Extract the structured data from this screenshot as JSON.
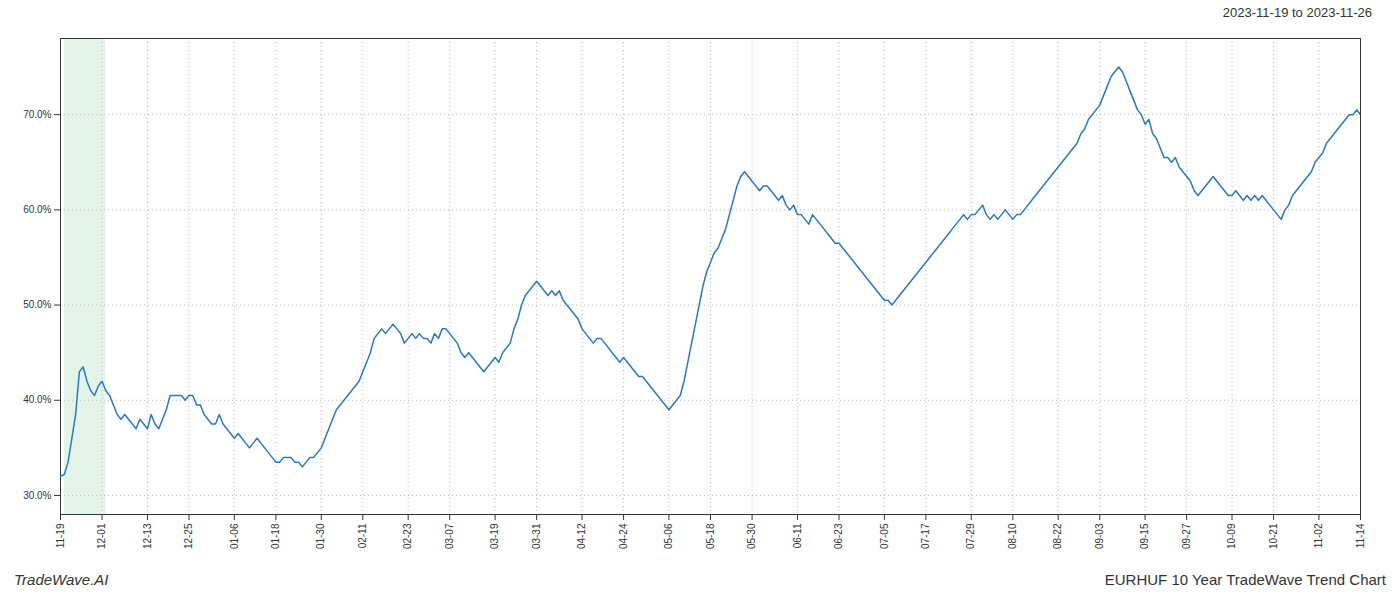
{
  "chart_data": {
    "type": "line",
    "title": "EURHUF 10 Year TradeWave Trend Chart",
    "subtitle": "2023-11-19 to 2023-11-26",
    "annotations": [
      {
        "text": "TradeWave.AI"
      }
    ],
    "categories": [
      "11-19",
      null,
      null,
      null,
      null,
      null,
      null,
      null,
      null,
      null,
      null,
      "12-01",
      null,
      null,
      null,
      null,
      null,
      null,
      null,
      null,
      null,
      null,
      null,
      "12-13",
      null,
      null,
      null,
      null,
      null,
      null,
      null,
      null,
      null,
      null,
      "12-25",
      null,
      null,
      null,
      null,
      null,
      null,
      null,
      null,
      null,
      null,
      null,
      "01-06",
      null,
      null,
      null,
      null,
      null,
      null,
      null,
      null,
      null,
      null,
      "01-18",
      null,
      null,
      null,
      null,
      null,
      null,
      null,
      null,
      null,
      null,
      null,
      "01-30",
      null,
      null,
      null,
      null,
      null,
      null,
      null,
      null,
      null,
      null,
      "02-11",
      null,
      null,
      null,
      null,
      null,
      null,
      null,
      null,
      null,
      null,
      null,
      "02-23",
      null,
      null,
      null,
      null,
      null,
      null,
      null,
      null,
      null,
      null,
      "03-07",
      null,
      null,
      null,
      null,
      null,
      null,
      null,
      null,
      null,
      null,
      null,
      "03-19",
      null,
      null,
      null,
      null,
      null,
      null,
      null,
      null,
      null,
      null,
      "03-31",
      null,
      null,
      null,
      null,
      null,
      null,
      null,
      null,
      null,
      null,
      null,
      "04-12",
      null,
      null,
      null,
      null,
      null,
      null,
      null,
      null,
      null,
      null,
      "04-24",
      null,
      null,
      null,
      null,
      null,
      null,
      null,
      null,
      null,
      null,
      null,
      "05-06",
      null,
      null,
      null,
      null,
      null,
      null,
      null,
      null,
      null,
      null,
      "05-18",
      null,
      null,
      null,
      null,
      null,
      null,
      null,
      null,
      null,
      null,
      "05-30",
      null,
      null,
      null,
      null,
      null,
      null,
      null,
      null,
      null,
      null,
      null,
      "06-11",
      null,
      null,
      null,
      null,
      null,
      null,
      null,
      null,
      null,
      null,
      "06-23",
      null,
      null,
      null,
      null,
      null,
      null,
      null,
      null,
      null,
      null,
      null,
      "07-05",
      null,
      null,
      null,
      null,
      null,
      null,
      null,
      null,
      null,
      null,
      "07-17",
      null,
      null,
      null,
      null,
      null,
      null,
      null,
      null,
      null,
      null,
      null,
      "07-29",
      null,
      null,
      null,
      null,
      null,
      null,
      null,
      null,
      null,
      null,
      "08-10",
      null,
      null,
      null,
      null,
      null,
      null,
      null,
      null,
      null,
      null,
      null,
      "08-22",
      null,
      null,
      null,
      null,
      null,
      null,
      null,
      null,
      null,
      null,
      "09-03",
      null,
      null,
      null,
      null,
      null,
      null,
      null,
      null,
      null,
      null,
      null,
      "09-15",
      null,
      null,
      null,
      null,
      null,
      null,
      null,
      null,
      null,
      null,
      "09-27",
      null,
      null,
      null,
      null,
      null,
      null,
      null,
      null,
      null,
      null,
      null,
      "10-09",
      null,
      null,
      null,
      null,
      null,
      null,
      null,
      null,
      null,
      null,
      "10-21",
      null,
      null,
      null,
      null,
      null,
      null,
      null,
      null,
      null,
      null,
      null,
      "11-02",
      null,
      null,
      null,
      null,
      null,
      null,
      null,
      null,
      null,
      null,
      "11-14"
    ],
    "values": [
      32.0,
      32.2,
      33.5,
      36.0,
      38.5,
      43.0,
      43.5,
      42.0,
      41.0,
      40.5,
      41.5,
      42.0,
      41.0,
      40.5,
      39.5,
      38.5,
      38.0,
      38.5,
      38.0,
      37.5,
      37.0,
      38.0,
      37.5,
      37.0,
      38.5,
      37.5,
      37.0,
      38.0,
      39.0,
      40.5,
      40.5,
      40.5,
      40.5,
      40.0,
      40.5,
      40.5,
      39.5,
      39.5,
      38.5,
      38.0,
      37.5,
      37.5,
      38.5,
      37.5,
      37.0,
      36.5,
      36.0,
      36.5,
      36.0,
      35.5,
      35.0,
      35.5,
      36.0,
      35.5,
      35.0,
      34.5,
      34.0,
      33.5,
      33.5,
      34.0,
      34.0,
      34.0,
      33.5,
      33.5,
      33.0,
      33.5,
      34.0,
      34.0,
      34.5,
      35.0,
      36.0,
      37.0,
      38.0,
      39.0,
      39.5,
      40.0,
      40.5,
      41.0,
      41.5,
      42.0,
      43.0,
      44.0,
      45.0,
      46.5,
      47.0,
      47.5,
      47.0,
      47.5,
      48.0,
      47.5,
      47.0,
      46.0,
      46.5,
      47.0,
      46.5,
      47.0,
      46.5,
      46.5,
      46.0,
      47.0,
      46.5,
      47.5,
      47.5,
      47.0,
      46.5,
      46.0,
      45.0,
      44.5,
      45.0,
      44.5,
      44.0,
      43.5,
      43.0,
      43.5,
      44.0,
      44.5,
      44.0,
      45.0,
      45.5,
      46.0,
      47.5,
      48.5,
      50.0,
      51.0,
      51.5,
      52.0,
      52.5,
      52.0,
      51.5,
      51.0,
      51.5,
      51.0,
      51.5,
      50.5,
      50.0,
      49.5,
      49.0,
      48.5,
      47.5,
      47.0,
      46.5,
      46.0,
      46.5,
      46.5,
      46.0,
      45.5,
      45.0,
      44.5,
      44.0,
      44.5,
      44.0,
      43.5,
      43.0,
      42.5,
      42.5,
      42.0,
      41.5,
      41.0,
      40.5,
      40.0,
      39.5,
      39.0,
      39.5,
      40.0,
      40.5,
      42.0,
      44.0,
      46.0,
      48.0,
      50.0,
      52.0,
      53.5,
      54.5,
      55.5,
      56.0,
      57.0,
      58.0,
      59.5,
      61.0,
      62.5,
      63.5,
      64.0,
      63.5,
      63.0,
      62.5,
      62.0,
      62.5,
      62.5,
      62.0,
      61.5,
      61.0,
      61.5,
      60.5,
      60.0,
      60.5,
      59.5,
      59.5,
      59.0,
      58.5,
      59.5,
      59.0,
      58.5,
      58.0,
      57.5,
      57.0,
      56.5,
      56.5,
      56.0,
      55.5,
      55.0,
      54.5,
      54.0,
      53.5,
      53.0,
      52.5,
      52.0,
      51.5,
      51.0,
      50.5,
      50.5,
      50.0,
      50.5,
      51.0,
      51.5,
      52.0,
      52.5,
      53.0,
      53.5,
      54.0,
      54.5,
      55.0,
      55.5,
      56.0,
      56.5,
      57.0,
      57.5,
      58.0,
      58.5,
      59.0,
      59.5,
      59.0,
      59.5,
      59.5,
      60.0,
      60.5,
      59.5,
      59.0,
      59.5,
      59.0,
      59.5,
      60.0,
      59.5,
      59.0,
      59.5,
      59.5,
      60.0,
      60.5,
      61.0,
      61.5,
      62.0,
      62.5,
      63.0,
      63.5,
      64.0,
      64.5,
      65.0,
      65.5,
      66.0,
      66.5,
      67.0,
      68.0,
      68.5,
      69.5,
      70.0,
      70.5,
      71.0,
      72.0,
      73.0,
      74.0,
      74.5,
      75.0,
      74.5,
      73.5,
      72.5,
      71.5,
      70.5,
      70.0,
      69.0,
      69.5,
      68.0,
      67.5,
      66.5,
      65.5,
      65.5,
      65.0,
      65.5,
      64.5,
      64.0,
      63.5,
      63.0,
      62.0,
      61.5,
      62.0,
      62.5,
      63.0,
      63.5,
      63.0,
      62.5,
      62.0,
      61.5,
      61.5,
      62.0,
      61.5,
      61.0,
      61.5,
      61.0,
      61.5,
      61.0,
      61.5,
      61.0,
      60.5,
      60.0,
      59.5,
      59.0,
      60.0,
      60.5,
      61.5,
      62.0,
      62.5,
      63.0,
      63.5,
      64.0,
      65.0,
      65.5,
      66.0,
      67.0,
      67.5,
      68.0,
      68.5,
      69.0,
      69.5,
      70.0,
      70.0,
      70.5,
      70.0
    ],
    "color": "#2878c8",
    "ylim": [
      28.0,
      78.0
    ],
    "yticks": [
      {
        "value": 30.0,
        "label": "30.0%"
      },
      {
        "value": 40.0,
        "label": "40.0%"
      },
      {
        "value": 50.0,
        "label": "50.0%"
      },
      {
        "value": 60.0,
        "label": "60.0%"
      },
      {
        "value": 70.0,
        "label": "70.0%"
      }
    ],
    "grid": true,
    "highlight": {
      "start": 1,
      "end": 12,
      "color": "#d4edda"
    }
  }
}
